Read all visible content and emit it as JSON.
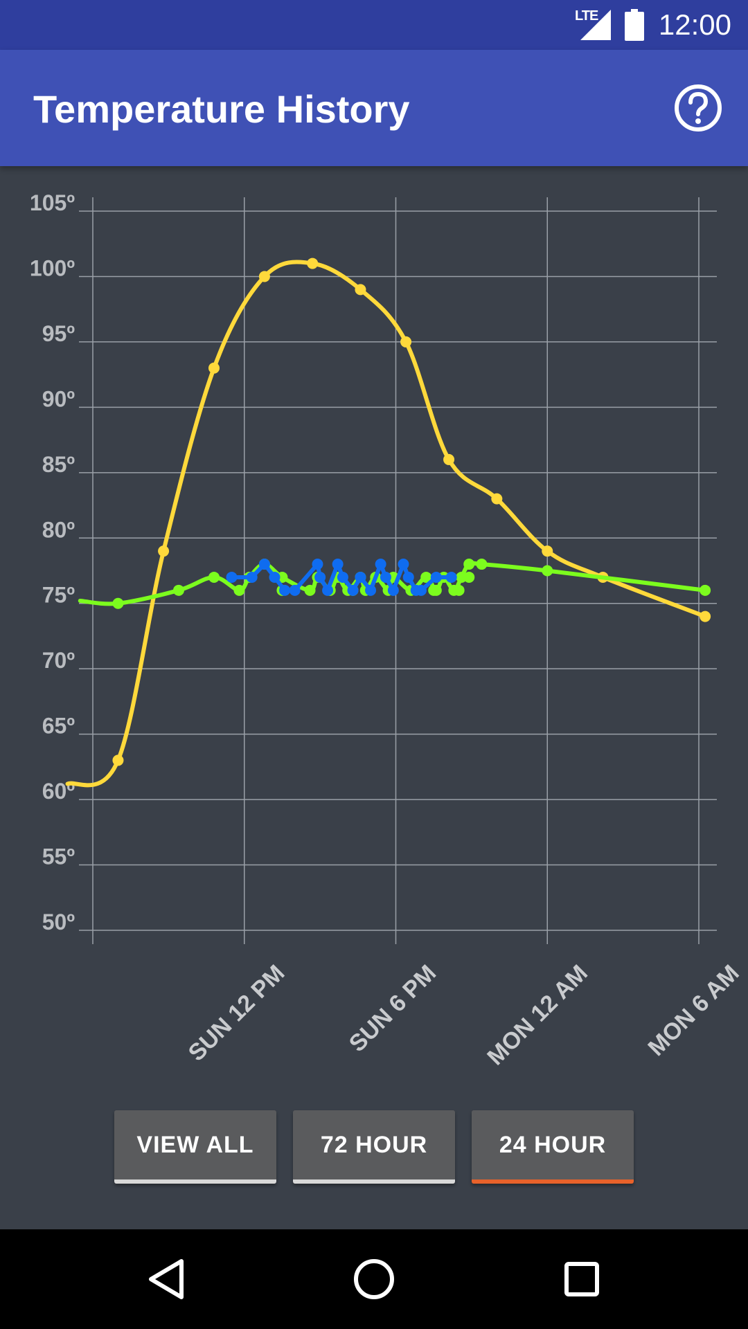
{
  "status_bar": {
    "network": "LTE",
    "time": "12:00"
  },
  "app_bar": {
    "title": "Temperature History",
    "help_icon": "help-circle-icon"
  },
  "range_buttons": [
    {
      "label": "VIEW ALL",
      "active": false
    },
    {
      "label": "72 HOUR",
      "active": false
    },
    {
      "label": "24 HOUR",
      "active": true
    }
  ],
  "nav_bar": {
    "back_icon": "back-triangle-icon",
    "home_icon": "home-circle-icon",
    "recents_icon": "recents-square-icon"
  },
  "colors": {
    "yellow_series": "#ffd93b",
    "green_series": "#7cfc1e",
    "blue_series": "#0f6cf0",
    "active_underline": "#e8622b"
  },
  "chart_data": {
    "type": "line",
    "title": "",
    "xlabel": "",
    "ylabel": "",
    "y_tick_labels": [
      "105º",
      "100º",
      "95º",
      "90º",
      "85º",
      "80º",
      "75º",
      "70º",
      "65º",
      "60º",
      "55º",
      "50º"
    ],
    "y_ticks": [
      105,
      100,
      95,
      90,
      85,
      80,
      75,
      70,
      65,
      60,
      55,
      50
    ],
    "ylim": [
      50,
      105
    ],
    "x_unit": "hours",
    "x_ticks": [
      {
        "label": "",
        "x": 6
      },
      {
        "label": "SUN 12 PM",
        "x": 12
      },
      {
        "label": "SUN 6 PM",
        "x": 18
      },
      {
        "label": "MON 12 AM",
        "x": 24
      },
      {
        "label": "MON 6 AM",
        "x": 30
      }
    ],
    "xlim": [
      5.5,
      30.8
    ],
    "grid": true,
    "series": [
      {
        "color": "#ffd93b",
        "smooth": true,
        "points": [
          [
            5.0,
            61.2
          ],
          [
            7.0,
            63.0
          ],
          [
            8.8,
            79.0
          ],
          [
            10.8,
            93.0
          ],
          [
            12.8,
            100.0
          ],
          [
            14.7,
            101.0
          ],
          [
            16.6,
            99.0
          ],
          [
            18.4,
            95.0
          ],
          [
            20.1,
            86.0
          ],
          [
            22.0,
            83.0
          ],
          [
            24.0,
            79.0
          ],
          [
            26.2,
            77.0
          ],
          [
            30.25,
            74.0
          ]
        ],
        "markers_from": 1
      },
      {
        "color": "#7cfc1e",
        "smooth": true,
        "points": [
          [
            5.5,
            75.2
          ],
          [
            7.0,
            75.0
          ],
          [
            9.4,
            76.0
          ],
          [
            10.8,
            77.0
          ],
          [
            11.8,
            76.0
          ],
          [
            12.2,
            77.0
          ],
          [
            12.8,
            78.0
          ],
          [
            13.5,
            77.0
          ],
          [
            14.6,
            76.0
          ],
          [
            14.9,
            77.0
          ],
          [
            15.4,
            76.0
          ],
          [
            15.7,
            77.0
          ],
          [
            16.1,
            76.0
          ],
          [
            16.6,
            77.0
          ],
          [
            16.8,
            76.0
          ],
          [
            17.2,
            77.0
          ],
          [
            17.7,
            76.0
          ],
          [
            17.9,
            77.0
          ],
          [
            18.6,
            76.0
          ],
          [
            19.2,
            77.0
          ],
          [
            19.6,
            76.0
          ],
          [
            19.9,
            77.0
          ],
          [
            20.3,
            76.0
          ],
          [
            20.6,
            77.0
          ],
          [
            20.9,
            78.0
          ],
          [
            21.4,
            78.0
          ],
          [
            24.0,
            77.5
          ],
          [
            30.25,
            76.0
          ]
        ],
        "extra_markers": [
          [
            13.5,
            76.0
          ],
          [
            16.3,
            76.0
          ],
          [
            19.5,
            76.0
          ],
          [
            20.5,
            76.0
          ],
          [
            20.9,
            77.0
          ]
        ],
        "markers_from": 1
      },
      {
        "color": "#0f6cf0",
        "smooth": false,
        "points": [
          [
            11.5,
            77.0
          ],
          [
            12.3,
            77.0
          ],
          [
            12.8,
            78.0
          ],
          [
            13.2,
            77.0
          ],
          [
            13.6,
            76.0
          ],
          [
            14.0,
            76.0
          ],
          [
            14.9,
            78.0
          ],
          [
            15.0,
            77.0
          ],
          [
            15.3,
            76.0
          ],
          [
            15.7,
            78.0
          ],
          [
            15.9,
            77.0
          ],
          [
            16.3,
            76.0
          ],
          [
            16.6,
            77.0
          ],
          [
            17.0,
            76.0
          ],
          [
            17.4,
            78.0
          ],
          [
            17.6,
            77.0
          ],
          [
            17.9,
            76.0
          ],
          [
            18.3,
            78.0
          ],
          [
            18.5,
            77.0
          ],
          [
            18.8,
            76.0
          ],
          [
            19.0,
            76.0
          ],
          [
            19.6,
            77.0
          ],
          [
            20.2,
            77.0
          ]
        ],
        "markers_from": 0
      }
    ]
  }
}
